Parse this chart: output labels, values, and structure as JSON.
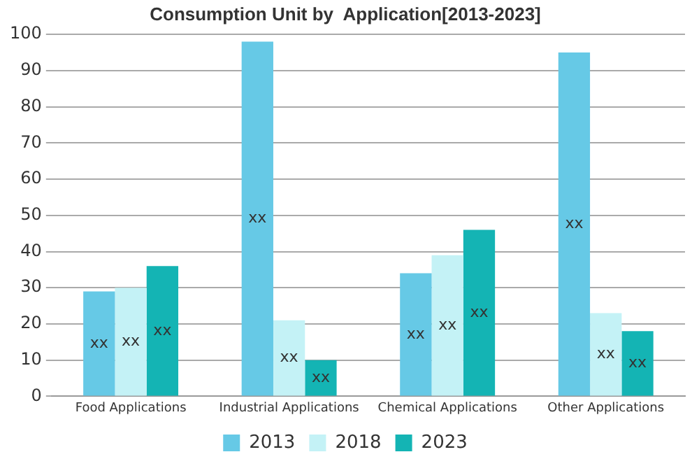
{
  "chart_data": {
    "type": "bar",
    "title": "Consumption Unit by  Application[2013-2023]",
    "categories": [
      "Food Applications",
      "Industrial Applications",
      "Chemical Applications",
      "Other Applications"
    ],
    "series": [
      {
        "name": "2013",
        "color": "#66c9e6",
        "values": [
          29,
          98,
          34,
          95
        ],
        "value_labels": [
          "xx",
          "xx",
          "xx",
          "xx"
        ]
      },
      {
        "name": "2018",
        "color": "#c4f2f6",
        "values": [
          30,
          21,
          39,
          23
        ],
        "value_labels": [
          "xx",
          "xx",
          "xx",
          "xx"
        ]
      },
      {
        "name": "2023",
        "color": "#14b4b4",
        "values": [
          36,
          10,
          46,
          18
        ],
        "value_labels": [
          "xx",
          "xx",
          "xx",
          "xx"
        ]
      }
    ],
    "ylim": [
      0,
      100
    ],
    "yticks": [
      0,
      10,
      20,
      30,
      40,
      50,
      60,
      70,
      80,
      90,
      100
    ],
    "grid": "y",
    "legend": "bottom"
  }
}
